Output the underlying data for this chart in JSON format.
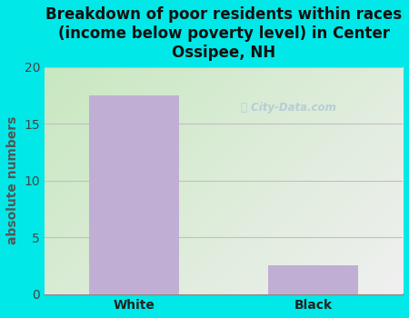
{
  "categories": [
    "White",
    "Black"
  ],
  "values": [
    17.5,
    2.5
  ],
  "bar_color": "#c0aed4",
  "title": "Breakdown of poor residents within races\n(income below poverty level) in Center\nOssipee, NH",
  "ylabel": "absolute numbers",
  "ylim": [
    0,
    20
  ],
  "yticks": [
    0,
    5,
    10,
    15,
    20
  ],
  "background_color": "#00e8e8",
  "plot_bg_top_left": "#c8e8c0",
  "plot_bg_bottom_right": "#f0f0f0",
  "title_fontsize": 12,
  "ylabel_fontsize": 10,
  "tick_fontsize": 10,
  "title_color": "#111111",
  "ytick_color": "#444444",
  "xtick_color": "#222222",
  "ylabel_color": "#555555",
  "grid_color": "#c0c0c0",
  "watermark_text": "City-Data.com",
  "watermark_color": "#b0c8d8"
}
